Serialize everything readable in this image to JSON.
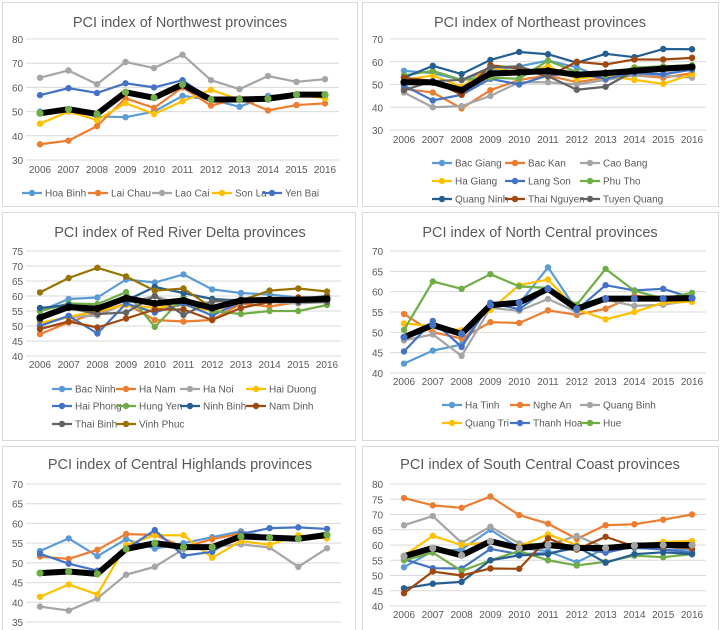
{
  "chart_data": [
    {
      "type": "line",
      "title": "PCI index of Northwest provinces",
      "x": [
        2006,
        2007,
        2008,
        2009,
        2010,
        2011,
        2012,
        2013,
        2014,
        2015,
        2016
      ],
      "ylim": [
        30,
        80
      ],
      "yticks": [
        30,
        40,
        50,
        60,
        70,
        80
      ],
      "grid": true,
      "legend": "bottom",
      "series": [
        {
          "name": "Hoa Binh",
          "color": "#5b9bd5",
          "values": [
            50,
            51,
            48,
            47.7,
            50,
            56.5,
            55,
            52,
            56.5,
            57,
            57
          ]
        },
        {
          "name": "Lai Chau",
          "color": "#ed7d31",
          "values": [
            36.5,
            38,
            44,
            55.5,
            51.5,
            60,
            52.5,
            55.5,
            50.5,
            52.7,
            53.4
          ]
        },
        {
          "name": "Lao Cai",
          "color": "#a5a5a5",
          "values": [
            64,
            67,
            61.3,
            70.5,
            68,
            73.5,
            63,
            59.3,
            64.7,
            62.3,
            63.4
          ]
        },
        {
          "name": "Son La",
          "color": "#ffc000",
          "values": [
            45,
            50,
            46.5,
            53.5,
            49,
            54.3,
            59,
            55,
            55,
            57,
            55.5
          ]
        },
        {
          "name": "Yen Bai",
          "color": "#4472c4",
          "values": [
            56.8,
            59.7,
            57.7,
            61.7,
            60,
            63,
            55,
            55,
            55,
            57,
            57
          ]
        },
        {
          "color": "#000000",
          "marker": "#70ad47",
          "values": [
            49.3,
            51,
            49,
            58,
            55.7,
            61.2,
            55,
            55,
            55.3,
            57,
            57
          ]
        }
      ]
    },
    {
      "type": "line",
      "title": "PCI index of Northeast provinces",
      "x": [
        2006,
        2007,
        2008,
        2009,
        2010,
        2011,
        2012,
        2013,
        2014,
        2015,
        2016
      ],
      "ylim": [
        30,
        70
      ],
      "yticks": [
        30,
        40,
        50,
        60,
        70
      ],
      "grid": true,
      "legend": "bottom",
      "series": [
        {
          "name": "Bac Giang",
          "color": "#5b9bd5",
          "values": [
            56,
            55,
            52,
            56,
            58,
            60.5,
            57.5,
            52.5,
            55,
            56,
            57
          ]
        },
        {
          "name": "Bac Kan",
          "color": "#ed7d31",
          "values": [
            48,
            46.5,
            39.5,
            47.5,
            52,
            54,
            51,
            53,
            54,
            53,
            55
          ]
        },
        {
          "name": "Cao Bang",
          "color": "#a5a5a5",
          "values": [
            46.5,
            40,
            40.5,
            45,
            51,
            51,
            50,
            52,
            54,
            54,
            53
          ]
        },
        {
          "name": "Ha Giang",
          "color": "#ffc000",
          "values": [
            52,
            54,
            49,
            57.5,
            55,
            58,
            52.5,
            54,
            52,
            50.3,
            54.5
          ]
        },
        {
          "name": "Lang Son",
          "color": "#4472c4",
          "values": [
            49.5,
            43,
            45.5,
            52.5,
            50,
            54,
            55,
            52.5,
            55,
            54.5,
            56.5
          ]
        },
        {
          "name": "Phu Tho",
          "color": "#70ad47",
          "values": [
            54,
            56,
            52,
            53,
            52.5,
            60.5,
            55.5,
            54,
            57.5,
            58,
            58.5
          ]
        },
        {
          "name": "Quang Ninh",
          "color": "#255e91",
          "values": [
            53,
            58.2,
            54.6,
            60.8,
            64.3,
            63.3,
            59.6,
            63.5,
            62,
            65.6,
            65.5
          ]
        },
        {
          "name": "Thai Nguyen",
          "color": "#9e480e",
          "values": [
            53,
            51.5,
            45.5,
            58.5,
            57,
            53.5,
            60,
            58.8,
            61,
            61,
            61.7
          ]
        },
        {
          "name": "Tuyen Quang",
          "color": "#636363",
          "values": [
            47.5,
            51.5,
            52,
            57.5,
            58,
            53.7,
            47.7,
            49,
            56,
            57,
            57.5
          ]
        },
        {
          "color": "#000000",
          "marker": "#000000",
          "values": [
            51,
            51,
            47.5,
            54.8,
            55.3,
            56,
            54.3,
            55,
            56,
            57,
            57.7
          ]
        }
      ]
    },
    {
      "type": "line",
      "title": "PCI index of Red River Delta provinces",
      "x": [
        2006,
        2007,
        2008,
        2009,
        2010,
        2011,
        2012,
        2013,
        2014,
        2015,
        2016
      ],
      "ylim": [
        40,
        75
      ],
      "yticks": [
        40,
        45,
        50,
        55,
        60,
        65,
        70,
        75
      ],
      "grid": true,
      "legend": "bottom",
      "series": [
        {
          "name": "Bac Ninh",
          "color": "#5b9bd5",
          "values": [
            55,
            59,
            59.5,
            65.5,
            64.5,
            67.2,
            62.2,
            61,
            60.5,
            59.5,
            59.5
          ]
        },
        {
          "name": "Ha Nam",
          "color": "#ed7d31",
          "values": [
            47.3,
            51.2,
            54.5,
            57.5,
            52,
            51.5,
            52,
            57.5,
            56.5,
            58,
            58.5
          ]
        },
        {
          "name": "Ha Noi",
          "color": "#a5a5a5",
          "values": [
            50.5,
            53,
            53.5,
            57.5,
            60,
            57,
            58,
            59,
            58,
            57.5,
            58
          ]
        },
        {
          "name": "Hai Duong",
          "color": "#ffc000",
          "values": [
            51,
            53,
            55,
            57,
            56,
            57,
            55,
            58,
            59,
            59,
            60
          ]
        },
        {
          "name": "Hai Phong",
          "color": "#4472c4",
          "values": [
            50,
            53.4,
            47.5,
            57.5,
            54.5,
            57.5,
            53.5,
            58,
            58.5,
            58.5,
            59
          ]
        },
        {
          "name": "Hung Yen",
          "color": "#70ad47",
          "values": [
            55,
            57.5,
            57.3,
            61.3,
            49.7,
            59.5,
            55,
            54,
            55,
            55,
            57
          ]
        },
        {
          "name": "Ninh Binh",
          "color": "#255e91",
          "values": [
            56,
            57,
            56,
            58.5,
            63,
            61,
            59,
            58.5,
            59,
            59,
            60
          ]
        },
        {
          "name": "Nam Dinh",
          "color": "#9e480e",
          "values": [
            49,
            51.5,
            49.5,
            52.5,
            55.5,
            55.5,
            52,
            56,
            58,
            59.5,
            59.5
          ]
        },
        {
          "name": "Thai Binh",
          "color": "#636363",
          "values": [
            52,
            56,
            54,
            54.5,
            60,
            53.7,
            58.3,
            58.5,
            58.5,
            58,
            58
          ]
        },
        {
          "name": "Vinh Phuc",
          "color": "#997300",
          "values": [
            61.2,
            66,
            69.4,
            66.5,
            61.8,
            62.5,
            56,
            58.5,
            61.8,
            62.5,
            61.5
          ]
        },
        {
          "color": "#000000",
          "marker": "#000000",
          "values": [
            52.8,
            56.3,
            55.8,
            59.3,
            57.5,
            58.5,
            56,
            58.5,
            58.7,
            58.7,
            59
          ]
        }
      ]
    },
    {
      "type": "line",
      "title": "PCI index of North Central provinces",
      "x": [
        2006,
        2007,
        2008,
        2009,
        2010,
        2011,
        2012,
        2013,
        2014,
        2015,
        2016
      ],
      "ylim": [
        40,
        70
      ],
      "yticks": [
        40,
        45,
        50,
        55,
        60,
        65,
        70
      ],
      "grid": true,
      "legend": "bottom",
      "series": [
        {
          "name": "Ha Tinh",
          "color": "#5b9bd5",
          "values": [
            42.3,
            45.5,
            47,
            57.3,
            57,
            66,
            55.5,
            58.3,
            58.3,
            58.3,
            58.3
          ]
        },
        {
          "name": "Nghe An",
          "color": "#ed7d31",
          "values": [
            54.5,
            50,
            48.5,
            52.5,
            52.3,
            55.4,
            54.3,
            55.8,
            59,
            58.3,
            58.5
          ]
        },
        {
          "name": "Quang Binh",
          "color": "#a5a5a5",
          "values": [
            48,
            49.5,
            44.2,
            56,
            55.3,
            58.2,
            55,
            58,
            56.5,
            56.8,
            57.8
          ]
        },
        {
          "name": "Quang Tri",
          "color": "#ffc000",
          "values": [
            52.2,
            51.5,
            50.5,
            55.5,
            61.6,
            63,
            55.6,
            53.2,
            55,
            57.3,
            57.5
          ]
        },
        {
          "name": "Thanh Hoa",
          "color": "#4472c4",
          "values": [
            45.3,
            52.8,
            46.4,
            57.2,
            55.7,
            60.7,
            55.5,
            61.6,
            60.3,
            60.7,
            58.5
          ]
        },
        {
          "name": "Hue",
          "color": "#70ad47",
          "values": [
            50.6,
            62.5,
            60.7,
            64.3,
            61.3,
            60.9,
            56.8,
            65.6,
            60.2,
            58.3,
            59.7
          ]
        },
        {
          "color": "#000000",
          "marker": "#4472c4",
          "values": [
            48.8,
            51.8,
            49.6,
            56.7,
            57.3,
            60.7,
            55.8,
            58.3,
            58.3,
            58.3,
            58.4
          ]
        }
      ]
    },
    {
      "type": "line",
      "title": "PCI index of Central Highlands provinces",
      "x": [
        2006,
        2007,
        2008,
        2009,
        2010,
        2011,
        2012,
        2013,
        2014,
        2015,
        2016
      ],
      "ylim": [
        35,
        70
      ],
      "yticks": [
        35,
        40,
        45,
        50,
        55,
        60,
        65,
        70
      ],
      "grid": true,
      "series": [
        {
          "color": "#5b9bd5",
          "values": [
            53,
            56.2,
            51.7,
            56,
            53.6,
            55,
            56.5,
            58,
            56.5,
            56.5,
            57
          ]
        },
        {
          "color": "#ed7d31",
          "values": [
            51.6,
            51,
            53.3,
            57.3,
            57.1,
            54,
            56,
            57.5,
            56.5,
            56.5,
            57
          ]
        },
        {
          "color": "#a5a5a5",
          "values": [
            38.9,
            37.9,
            41,
            47,
            49,
            53.5,
            54,
            54.7,
            53.9,
            49,
            53.7
          ]
        },
        {
          "color": "#ffc000",
          "values": [
            41.4,
            44.5,
            42,
            54.5,
            57,
            57,
            51.3,
            55.5,
            54.6,
            57,
            56.2
          ]
        },
        {
          "color": "#4472c4",
          "values": [
            52.3,
            49.8,
            48,
            53.5,
            58.3,
            51.8,
            52.8,
            57.3,
            58.8,
            59,
            58.6
          ]
        },
        {
          "color": "#000000",
          "marker": "#70ad47",
          "values": [
            47.4,
            47.8,
            47.2,
            53.5,
            55,
            54,
            54,
            56.7,
            56.4,
            56.1,
            57.1
          ]
        }
      ]
    },
    {
      "type": "line",
      "title": "PCI index of South Central Coast provinces",
      "x": [
        2006,
        2007,
        2008,
        2009,
        2010,
        2011,
        2012,
        2013,
        2014,
        2015,
        2016
      ],
      "ylim": [
        40,
        80
      ],
      "yticks": [
        40,
        45,
        50,
        55,
        60,
        65,
        70,
        75,
        80
      ],
      "grid": true,
      "series": [
        {
          "color": "#5b9bd5",
          "values": [
            52.7,
            58,
            58.5,
            65,
            59,
            58,
            54.3,
            59,
            59,
            58.5,
            58.5
          ]
        },
        {
          "color": "#ed7d31",
          "values": [
            75.4,
            73,
            72.2,
            75.9,
            69.8,
            67,
            62,
            66.5,
            66.8,
            68.3,
            70
          ]
        },
        {
          "color": "#a5a5a5",
          "values": [
            66.5,
            69.5,
            60.7,
            66,
            60.5,
            60,
            63,
            59,
            59.5,
            60,
            60.5
          ]
        },
        {
          "color": "#ffc000",
          "values": [
            56.5,
            63,
            60,
            61,
            59.5,
            63.5,
            60,
            59,
            60,
            61,
            61.3
          ]
        },
        {
          "color": "#4472c4",
          "values": [
            55.3,
            52.4,
            52.3,
            58.7,
            57,
            57.3,
            59,
            57.5,
            59.5,
            58.5,
            57.5
          ]
        },
        {
          "color": "#70ad47",
          "values": [
            55,
            57.5,
            51.5,
            55,
            58,
            55,
            53.3,
            54.5,
            56.5,
            56,
            57
          ]
        },
        {
          "color": "#255e91",
          "values": [
            45.8,
            47.3,
            47.9,
            55,
            56.6,
            57,
            59.5,
            54.2,
            57,
            57.6,
            57
          ]
        },
        {
          "color": "#9e480e",
          "values": [
            44.2,
            51.3,
            50,
            52.3,
            52.2,
            62.2,
            58.5,
            62.7,
            59.5,
            59.5,
            58.9
          ]
        },
        {
          "color": "#000000",
          "marker": "#a5a5a5",
          "values": [
            56.3,
            59,
            56.6,
            61.2,
            59,
            60,
            59,
            59,
            59.8,
            60,
            60
          ]
        }
      ]
    }
  ]
}
